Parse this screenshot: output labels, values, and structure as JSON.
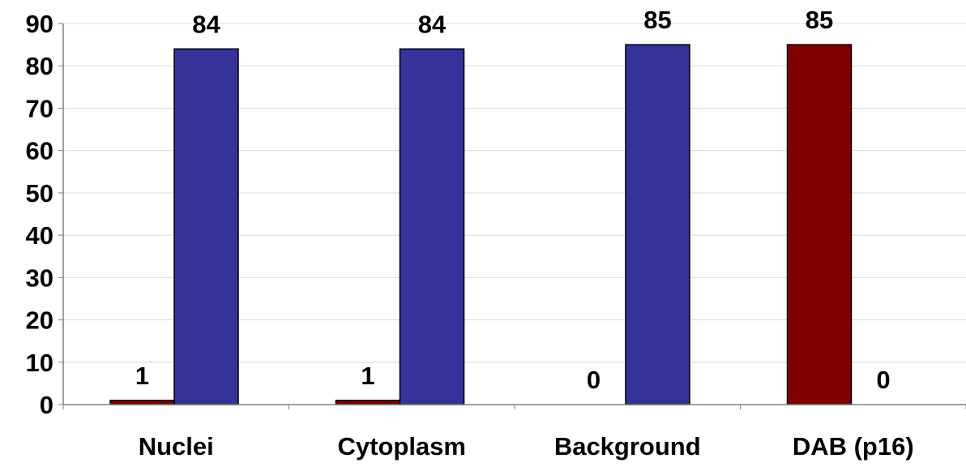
{
  "chart_data": {
    "type": "bar",
    "categories": [
      "Nuclei",
      "Cytoplasm",
      "Background",
      "DAB (p16)"
    ],
    "series": [
      {
        "values": [
          1,
          1,
          0,
          85
        ],
        "color": "#800000"
      },
      {
        "values": [
          84,
          84,
          85,
          0
        ],
        "color": "#333399"
      }
    ],
    "data_labels": [
      [
        "1",
        "1",
        "0",
        "85"
      ],
      [
        "84",
        "84",
        "85",
        "0"
      ]
    ],
    "ylim": [
      0,
      90
    ],
    "y_ticks": [
      0,
      10,
      20,
      30,
      40,
      50,
      60,
      70,
      80,
      90
    ],
    "xlabel": "",
    "ylabel": "",
    "grid": true,
    "legend": "none"
  }
}
